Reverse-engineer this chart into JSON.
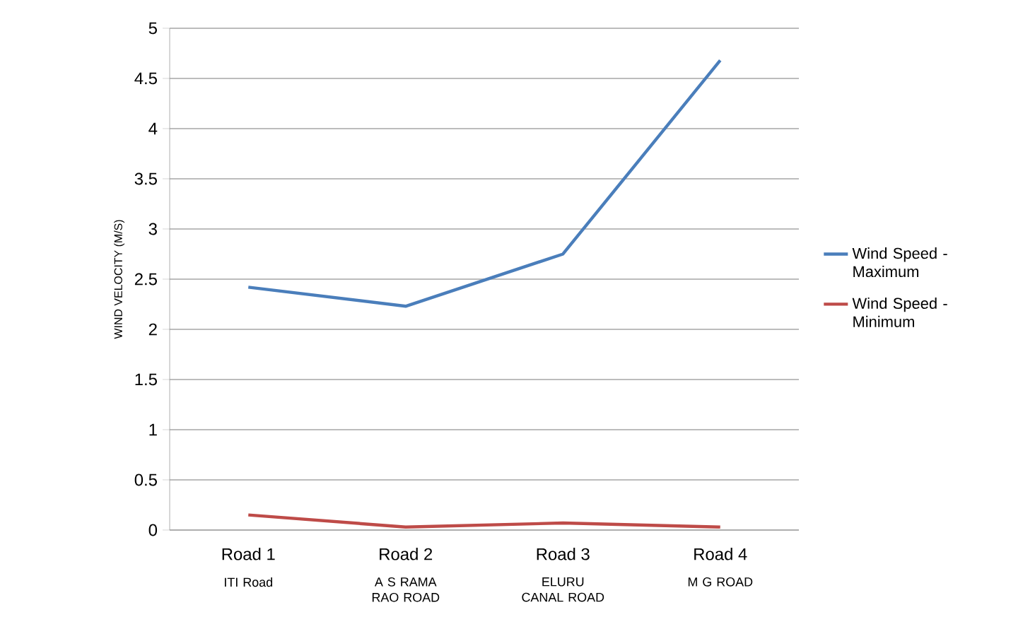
{
  "chart_data": {
    "type": "line",
    "ylabel": "WIND VELOCITY (M/S)",
    "categories": [
      "Road 1",
      "Road 2",
      "Road 3",
      "Road 4"
    ],
    "annotations": [
      "ITI Road",
      "A S RAMA RAO ROAD",
      "ELURU CANAL ROAD",
      "M G ROAD"
    ],
    "series": [
      {
        "name": "Wind Speed - Maximum",
        "color": "#4a7ebb",
        "values": [
          2.42,
          2.23,
          2.75,
          4.68
        ]
      },
      {
        "name": "Wind Speed - Minimum",
        "color": "#be4b48",
        "values": [
          0.15,
          0.03,
          0.07,
          0.03
        ]
      }
    ],
    "ylim": [
      0,
      5
    ],
    "yticks": [
      0,
      0.5,
      1,
      1.5,
      2,
      2.5,
      3,
      3.5,
      4,
      4.5,
      5
    ],
    "grid": "y",
    "legend": "right",
    "marker": "none",
    "line_style": "solid"
  }
}
